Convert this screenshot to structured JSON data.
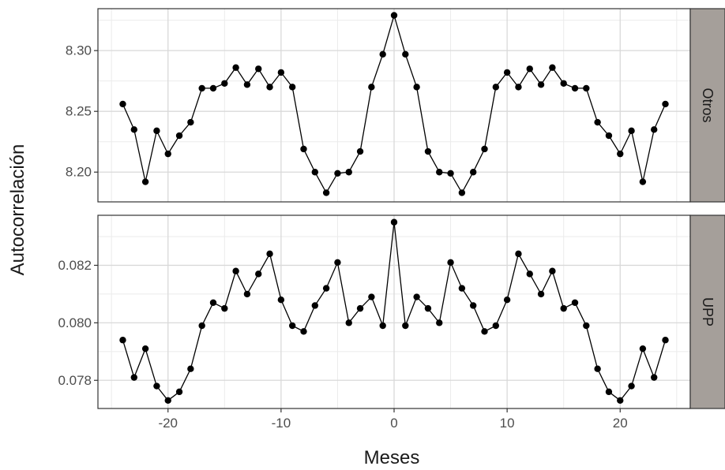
{
  "chart_data": {
    "type": "line",
    "xlabel": "Meses",
    "ylabel": "Autocorrelación",
    "grid": true,
    "x_ticks": [
      -20,
      -10,
      0,
      10,
      20
    ],
    "x_tick_labels": [
      "-20",
      "-10",
      "0",
      "10",
      "20"
    ],
    "xlim": [
      -26.2,
      26.2
    ],
    "x": [
      -24,
      -23,
      -22,
      -21,
      -20,
      -19,
      -18,
      -17,
      -16,
      -15,
      -14,
      -13,
      -12,
      -11,
      -10,
      -9,
      -8,
      -7,
      -6,
      -5,
      -4,
      -3,
      -2,
      -1,
      0,
      1,
      2,
      3,
      4,
      5,
      6,
      7,
      8,
      9,
      10,
      11,
      12,
      13,
      14,
      15,
      16,
      17,
      18,
      19,
      20,
      21,
      22,
      23,
      24
    ],
    "panels": [
      {
        "strip": "Otros",
        "ylim": [
          8.1755,
          8.3345
        ],
        "y_ticks": [
          8.2,
          8.25,
          8.3
        ],
        "y_tick_labels": [
          "8.20",
          "8.25",
          "8.30"
        ],
        "values": [
          8.256,
          8.235,
          8.192,
          8.234,
          8.215,
          8.23,
          8.241,
          8.269,
          8.269,
          8.273,
          8.286,
          8.272,
          8.285,
          8.27,
          8.282,
          8.27,
          8.219,
          8.2,
          8.183,
          8.199,
          8.2,
          8.217,
          8.27,
          8.297,
          8.329,
          8.297,
          8.27,
          8.217,
          8.2,
          8.199,
          8.183,
          8.2,
          8.219,
          8.27,
          8.282,
          8.27,
          8.285,
          8.272,
          8.286,
          8.273,
          8.269,
          8.269,
          8.241,
          8.23,
          8.215,
          8.234,
          8.192,
          8.235,
          8.256
        ]
      },
      {
        "strip": "UPP",
        "ylim": [
          0.07702,
          0.08374
        ],
        "y_ticks": [
          0.078,
          0.08,
          0.082
        ],
        "y_tick_labels": [
          "0.078",
          "0.080",
          "0.082"
        ],
        "values": [
          0.0794,
          0.0781,
          0.0791,
          0.0778,
          0.0773,
          0.0776,
          0.0784,
          0.0799,
          0.0807,
          0.0805,
          0.0818,
          0.081,
          0.0817,
          0.0824,
          0.0808,
          0.0799,
          0.0797,
          0.0806,
          0.0812,
          0.0821,
          0.08,
          0.0805,
          0.0809,
          0.0799,
          0.0835,
          0.0799,
          0.0809,
          0.0805,
          0.08,
          0.0821,
          0.0812,
          0.0806,
          0.0797,
          0.0799,
          0.0808,
          0.0824,
          0.0817,
          0.081,
          0.0818,
          0.0805,
          0.0807,
          0.0799,
          0.0784,
          0.0776,
          0.0773,
          0.0778,
          0.0791,
          0.0781,
          0.0794
        ]
      }
    ]
  }
}
